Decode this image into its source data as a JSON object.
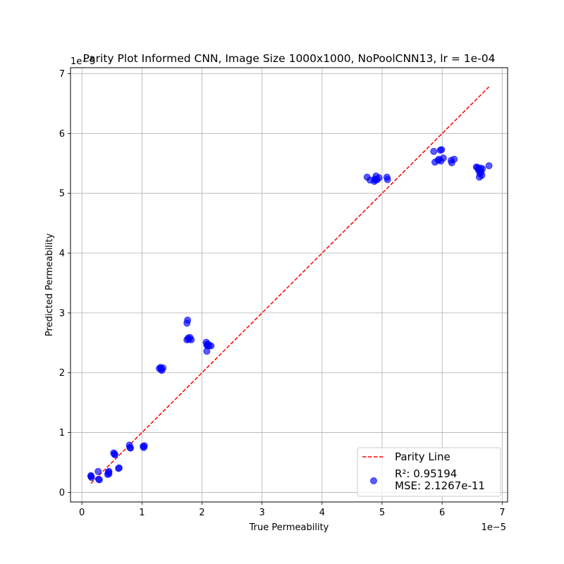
{
  "chart_data": {
    "type": "scatter",
    "title": "Parity Plot Informed CNN, Image Size 1000x1000, NoPoolCNN13, lr = 1e-04",
    "xlabel": "True Permeability",
    "ylabel": "Predicted Permeability",
    "x_offset_label": "1e−5",
    "y_offset_label": "1e−5",
    "xlim": [
      -0.19,
      7.09
    ],
    "ylim": [
      -0.16,
      7.1
    ],
    "x_ticks": [
      0,
      1,
      2,
      3,
      4,
      5,
      6,
      7
    ],
    "y_ticks": [
      0,
      1,
      2,
      3,
      4,
      5,
      6,
      7
    ],
    "grid": true,
    "legend_position": "lower-right",
    "colors": {
      "points": "#0000ff",
      "parity_line": "#ff0000",
      "grid": "#b0b0b0"
    },
    "parity_line": {
      "name": "Parity Line",
      "x": [
        0.15,
        6.78
      ],
      "y": [
        0.15,
        6.78
      ]
    },
    "series": [
      {
        "name": "R²: 0.95194\nMSE: 2.1267e-11",
        "x": [
          0.15,
          0.16,
          0.15,
          0.27,
          0.28,
          0.29,
          0.44,
          0.43,
          0.45,
          0.45,
          0.53,
          0.54,
          0.55,
          0.62,
          0.61,
          0.79,
          0.8,
          0.81,
          1.02,
          1.03,
          1.04,
          1.29,
          1.31,
          1.33,
          1.35,
          1.32,
          1.75,
          1.76,
          1.75,
          1.77,
          1.78,
          1.8,
          1.82,
          2.07,
          2.08,
          2.09,
          2.1,
          2.12,
          2.15,
          2.08,
          4.75,
          4.8,
          4.87,
          4.88,
          4.9,
          4.92,
          4.95,
          4.89,
          5.08,
          5.09,
          5.86,
          5.88,
          5.93,
          5.95,
          5.97,
          5.99,
          5.98,
          6.02,
          6.15,
          6.16,
          6.2,
          6.57,
          6.59,
          6.6,
          6.61,
          6.62,
          6.64,
          6.66,
          6.67,
          6.78,
          6.63,
          6.65
        ],
        "y": [
          0.27,
          0.25,
          0.28,
          0.35,
          0.22,
          0.21,
          0.34,
          0.3,
          0.35,
          0.31,
          0.66,
          0.64,
          0.63,
          0.41,
          0.4,
          0.79,
          0.75,
          0.74,
          0.77,
          0.75,
          0.78,
          2.07,
          2.09,
          2.04,
          2.08,
          2.06,
          2.83,
          2.88,
          2.55,
          2.58,
          2.56,
          2.59,
          2.55,
          2.51,
          2.47,
          2.45,
          2.48,
          2.45,
          2.45,
          2.36,
          5.27,
          5.22,
          5.2,
          5.24,
          5.29,
          5.23,
          5.26,
          5.22,
          5.27,
          5.23,
          5.7,
          5.52,
          5.55,
          5.57,
          5.72,
          5.73,
          5.54,
          5.59,
          5.55,
          5.51,
          5.57,
          5.44,
          5.43,
          5.41,
          5.38,
          5.27,
          5.42,
          5.3,
          5.41,
          5.46,
          5.33,
          5.36
        ]
      }
    ]
  }
}
